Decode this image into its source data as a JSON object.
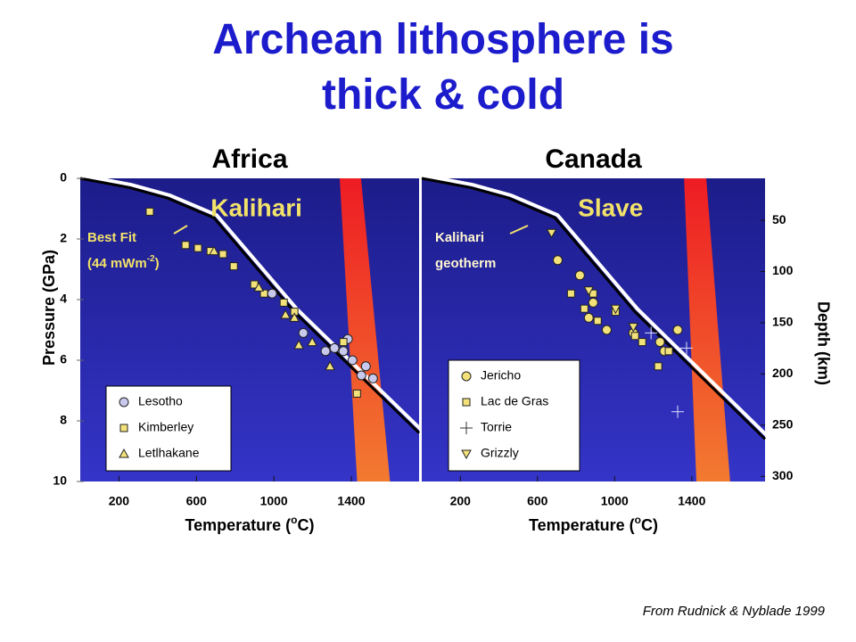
{
  "title": "Archean lithosphere is thick & cold",
  "source": "From Rudnick & Nyblade 1999",
  "chart_data": [
    {
      "type": "scatter",
      "title": "Africa",
      "region_label": "Kalihari",
      "annotation": [
        "Best Fit",
        "(44 mWm",
        "-2",
        ")"
      ],
      "xlabel": [
        "Temperature (",
        "o",
        "C)"
      ],
      "ylabel": "Pressure (GPa)",
      "xlim": [
        0,
        1750
      ],
      "xticks": [
        200,
        600,
        1000,
        1400
      ],
      "ylim": [
        10,
        0
      ],
      "yticks": [
        0,
        2,
        4,
        6,
        8,
        10
      ],
      "legend": "lower left",
      "geotherm": {
        "x": [
          0,
          250,
          450,
          690,
          1105,
          1750
        ],
        "y": [
          0,
          0.3,
          0.65,
          1.3,
          4.4,
          8.4
        ]
      },
      "melt_band": {
        "x_top": [
          1340,
          1450
        ],
        "x_bottom": [
          1430,
          1600
        ]
      },
      "series": [
        {
          "name": "Lesotho",
          "marker": "circle",
          "color": "#c9c9ee",
          "x": [
            1152,
            1313,
            1359,
            1406,
            1475,
            1382,
            1452,
            1512,
            1267,
            991
          ],
          "values": [
            5.1,
            5.6,
            5.7,
            6.0,
            6.2,
            5.3,
            6.5,
            6.6,
            5.7,
            3.8
          ]
        },
        {
          "name": "Kimberley",
          "marker": "square",
          "color": "#f3e27a",
          "x": [
            359,
            544,
            608,
            673,
            737,
            793,
            899,
            949,
            1051,
            1106,
            1359,
            1429
          ],
          "values": [
            1.1,
            2.2,
            2.3,
            2.4,
            2.5,
            2.9,
            3.5,
            3.8,
            4.1,
            4.4,
            5.4,
            7.1
          ]
        },
        {
          "name": "Letlhakane",
          "marker": "triangle",
          "color": "#f3e27a",
          "x": [
            691,
            922,
            1060,
            1129,
            1290,
            1198,
            1106
          ],
          "values": [
            2.4,
            3.6,
            4.5,
            5.5,
            6.2,
            5.4,
            4.6
          ]
        }
      ]
    },
    {
      "type": "scatter",
      "title": "Canada",
      "region_label": "Slave",
      "annotation": [
        "Kalihari",
        "geotherm"
      ],
      "xlabel": [
        "Temperature (",
        "o",
        "C)"
      ],
      "y2label": "Depth (km)",
      "xlim": [
        0,
        1780
      ],
      "xticks": [
        200,
        600,
        1000,
        1400
      ],
      "ylim": [
        10,
        0
      ],
      "y2lim": [
        305,
        9
      ],
      "y2ticks": [
        50,
        100,
        150,
        200,
        250,
        300
      ],
      "legend": "lower left",
      "geotherm": {
        "x": [
          0,
          250,
          450,
          690,
          1105,
          1780
        ],
        "y": [
          0,
          0.3,
          0.65,
          1.3,
          4.4,
          8.6
        ]
      },
      "melt_band": {
        "x_top": [
          1360,
          1475
        ],
        "x_bottom": [
          1424,
          1599
        ]
      },
      "series": [
        {
          "name": "Jericho",
          "marker": "circle",
          "color": "#f3e27a",
          "x": [
            705,
            820,
            889,
            959,
            866,
            1097,
            1235,
            1327,
            1258
          ],
          "values": [
            2.7,
            3.2,
            4.1,
            5.0,
            4.6,
            5.1,
            5.4,
            5.0,
            5.7
          ]
        },
        {
          "name": "Lac de Gras",
          "marker": "square",
          "color": "#f3e27a",
          "x": [
            774,
            843,
            912,
            1005,
            1106,
            1143,
            1226,
            1281,
            889
          ],
          "values": [
            3.8,
            4.3,
            4.7,
            4.4,
            5.2,
            5.4,
            6.2,
            5.7,
            3.8
          ]
        },
        {
          "name": "Torrie",
          "marker": "plus",
          "color": "#e0e0ff",
          "x": [
            1327,
            1189,
            1373
          ],
          "values": [
            7.7,
            5.1,
            5.6
          ]
        },
        {
          "name": "Grizzly",
          "marker": "triangle-down",
          "color": "#f3e27a",
          "x": [
            673,
            866,
            1005,
            1097
          ],
          "values": [
            1.8,
            3.7,
            4.3,
            4.9
          ]
        }
      ]
    }
  ]
}
